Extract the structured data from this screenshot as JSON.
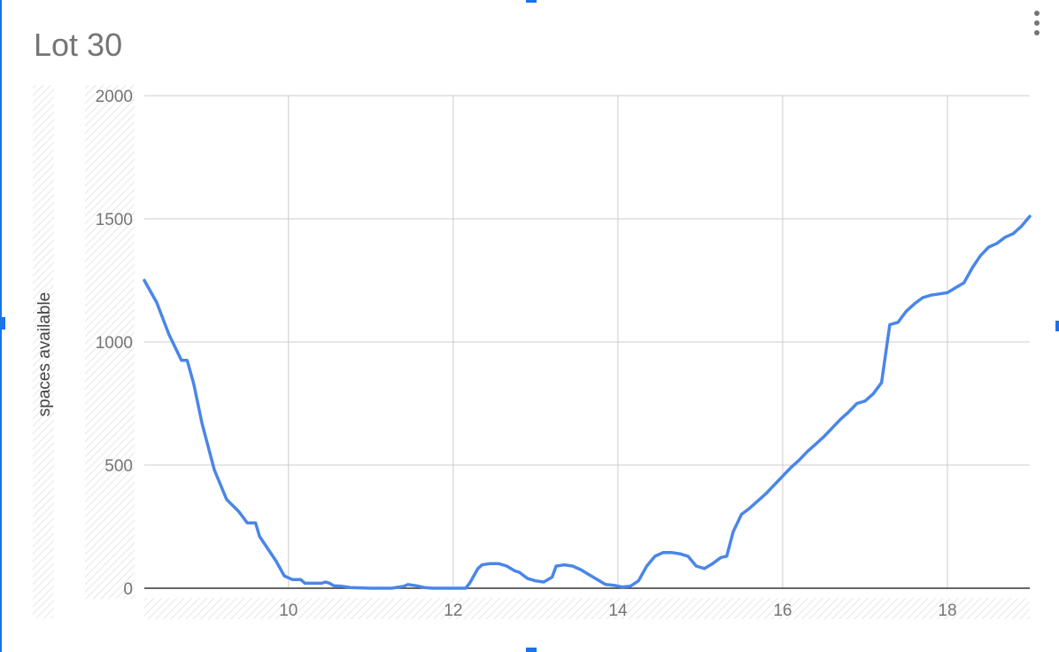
{
  "chart_data": {
    "type": "line",
    "title": "Lot 30",
    "xlabel": "",
    "ylabel": "spaces available",
    "xlim": [
      8.25,
      19.0
    ],
    "ylim": [
      0,
      2000
    ],
    "x_ticks": [
      "10",
      "12",
      "14",
      "16",
      "18"
    ],
    "y_ticks": [
      "0",
      "500",
      "1000",
      "1500",
      "2000"
    ],
    "grid": true,
    "legend": "none",
    "line_color": "#4a86e8",
    "series": [
      {
        "x": [
          8.25,
          8.4,
          8.55,
          8.7,
          8.77,
          8.85,
          8.95,
          9.1,
          9.25,
          9.4,
          9.5,
          9.6,
          9.65,
          9.75,
          9.85,
          9.95,
          10.05,
          10.15,
          10.2,
          10.3,
          10.4,
          10.45,
          10.5,
          10.55,
          10.65,
          10.75,
          11.0,
          11.25,
          11.4,
          11.45,
          11.55,
          11.65,
          11.75,
          12.0,
          12.15,
          12.2,
          12.3,
          12.35,
          12.45,
          12.55,
          12.65,
          12.75,
          12.8,
          12.9,
          13.0,
          13.1,
          13.2,
          13.25,
          13.35,
          13.45,
          13.55,
          13.65,
          13.75,
          13.85,
          13.95,
          14.05,
          14.15,
          14.25,
          14.35,
          14.45,
          14.55,
          14.65,
          14.75,
          14.85,
          14.95,
          15.05,
          15.15,
          15.25,
          15.32,
          15.4,
          15.5,
          15.6,
          15.7,
          15.8,
          15.9,
          16.0,
          16.1,
          16.2,
          16.3,
          16.4,
          16.5,
          16.6,
          16.7,
          16.8,
          16.9,
          17.0,
          17.1,
          17.2,
          17.3,
          17.4,
          17.5,
          17.6,
          17.7,
          17.8,
          17.9,
          18.0,
          18.1,
          18.2,
          18.3,
          18.4,
          18.5,
          18.6,
          18.7,
          18.8,
          18.9,
          19.0
        ],
        "y": [
          1250,
          1160,
          1030,
          925,
          925,
          830,
          670,
          480,
          360,
          310,
          265,
          265,
          210,
          160,
          110,
          50,
          35,
          35,
          20,
          20,
          20,
          25,
          20,
          10,
          8,
          3,
          0,
          0,
          8,
          15,
          10,
          3,
          0,
          0,
          0,
          20,
          80,
          95,
          100,
          100,
          90,
          70,
          65,
          40,
          30,
          25,
          45,
          90,
          95,
          90,
          75,
          55,
          35,
          15,
          12,
          5,
          8,
          30,
          90,
          130,
          145,
          145,
          140,
          130,
          90,
          80,
          100,
          125,
          130,
          230,
          300,
          325,
          355,
          385,
          420,
          455,
          490,
          520,
          555,
          585,
          615,
          650,
          685,
          715,
          750,
          760,
          790,
          835,
          1070,
          1080,
          1125,
          1155,
          1180,
          1190,
          1195,
          1200,
          1220,
          1240,
          1300,
          1350,
          1385,
          1400,
          1425,
          1440,
          1470,
          1510
        ]
      }
    ]
  }
}
